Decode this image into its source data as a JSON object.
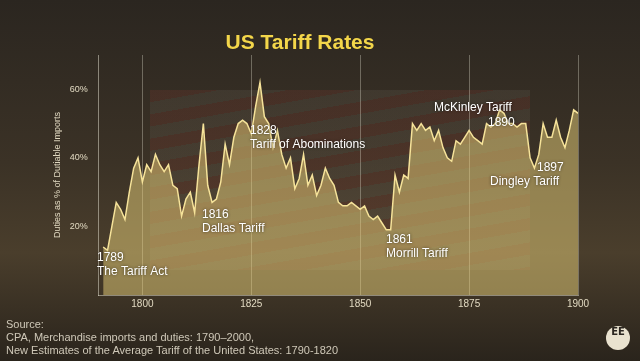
{
  "chart_data": {
    "type": "line",
    "title": "US Tariff Rates",
    "y_label": "Duties as % of Dutiable Imports",
    "x": [
      1791,
      1792,
      1793,
      1794,
      1795,
      1796,
      1797,
      1798,
      1799,
      1800,
      1801,
      1802,
      1803,
      1804,
      1805,
      1806,
      1807,
      1808,
      1809,
      1810,
      1811,
      1812,
      1813,
      1814,
      1815,
      1816,
      1817,
      1818,
      1819,
      1820,
      1821,
      1822,
      1823,
      1824,
      1825,
      1826,
      1827,
      1828,
      1829,
      1830,
      1831,
      1832,
      1833,
      1834,
      1835,
      1836,
      1837,
      1838,
      1839,
      1840,
      1841,
      1842,
      1843,
      1844,
      1845,
      1846,
      1847,
      1848,
      1849,
      1850,
      1851,
      1852,
      1853,
      1854,
      1855,
      1856,
      1857,
      1858,
      1859,
      1860,
      1861,
      1862,
      1863,
      1864,
      1865,
      1866,
      1867,
      1868,
      1869,
      1870,
      1871,
      1872,
      1873,
      1874,
      1875,
      1876,
      1877,
      1878,
      1879,
      1880,
      1881,
      1882,
      1883,
      1884,
      1885,
      1886,
      1887,
      1888,
      1889,
      1890,
      1891,
      1892,
      1893,
      1894,
      1895,
      1896,
      1897,
      1898,
      1899,
      1900
    ],
    "values": [
      14,
      13,
      20,
      27,
      25,
      22,
      30,
      37,
      40,
      33,
      38,
      36,
      41,
      38,
      36,
      38,
      32,
      31,
      23,
      28,
      30,
      24,
      38,
      50,
      32,
      27,
      28,
      33,
      44,
      38,
      46,
      50,
      51,
      50,
      47,
      55,
      62,
      52,
      50,
      43,
      48,
      41,
      37,
      40,
      31,
      34,
      41,
      32,
      35,
      29,
      32,
      37,
      34,
      32,
      27,
      26,
      26,
      27,
      26,
      25,
      26,
      23,
      22,
      23,
      21,
      19,
      19,
      35,
      30,
      35,
      34,
      50,
      48,
      50,
      48,
      49,
      45,
      48,
      43,
      40,
      39,
      45,
      44,
      46,
      48,
      46,
      45,
      44,
      50,
      49,
      50,
      54,
      53,
      50,
      50,
      49,
      50,
      50,
      40,
      37,
      41,
      50,
      46,
      46,
      51,
      46,
      43,
      48,
      54,
      53
    ],
    "color": "#e8cf7a",
    "xlim": [
      1790,
      1900
    ],
    "xticks": [
      1800,
      1825,
      1850,
      1875,
      1900
    ],
    "ylim": [
      0,
      70
    ],
    "yticks": [
      {
        "value": 20,
        "label": "20%"
      },
      {
        "value": 40,
        "label": "40%"
      },
      {
        "value": 60,
        "label": "60%"
      }
    ],
    "grid": "x",
    "annotations": [
      [
        "1789",
        "The Tariff Act"
      ],
      [
        "1816",
        "Dallas Tariff"
      ],
      [
        "1828",
        "Tariff of Abominations"
      ],
      [
        "1861",
        "Morrill Tariff"
      ],
      [
        "McKinley Tariff",
        "1890"
      ],
      [
        "1897",
        "Dingley Tariff"
      ]
    ],
    "source": [
      "Source:",
      "CPA, Merchandise imports and duties: 1790–2000,",
      "New Estimates of the Average Tariff of the United States: 1790-1820"
    ],
    "logo": "EE"
  }
}
